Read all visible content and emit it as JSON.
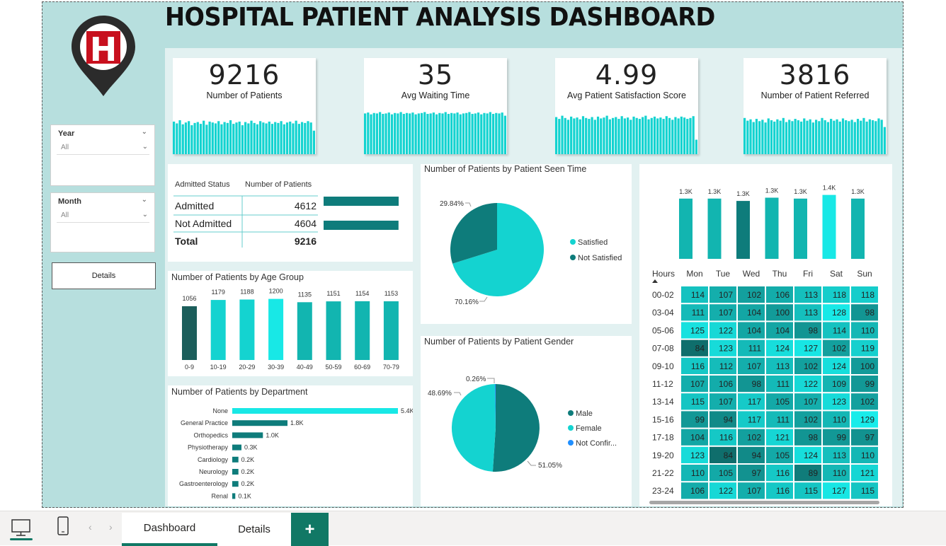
{
  "title": "HOSPITAL PATIENT ANALYSIS DASHBOARD",
  "logo_letter": "H",
  "slicers": [
    {
      "title": "Year",
      "value": "All"
    },
    {
      "title": "Month",
      "value": "All"
    }
  ],
  "details_button": "Details",
  "kpis": [
    {
      "value": "9216",
      "label": "Number of Patients",
      "spark": [
        0.72,
        0.68,
        0.75,
        0.66,
        0.7,
        0.73,
        0.64,
        0.69,
        0.71,
        0.67,
        0.74,
        0.65,
        0.72,
        0.7,
        0.68,
        0.73,
        0.66,
        0.71,
        0.69,
        0.75,
        0.67,
        0.7,
        0.72,
        0.64,
        0.71,
        0.68,
        0.74,
        0.69,
        0.66,
        0.73,
        0.7,
        0.68,
        0.72,
        0.67,
        0.71,
        0.69,
        0.73,
        0.66,
        0.7,
        0.72,
        0.68,
        0.74,
        0.67,
        0.71,
        0.69,
        0.73,
        0.7,
        0.52
      ]
    },
    {
      "value": "35",
      "label": "Avg Waiting Time",
      "spark": [
        0.9,
        0.92,
        0.88,
        0.91,
        0.9,
        0.93,
        0.89,
        0.9,
        0.92,
        0.88,
        0.91,
        0.9,
        0.93,
        0.89,
        0.91,
        0.9,
        0.92,
        0.88,
        0.9,
        0.91,
        0.93,
        0.89,
        0.9,
        0.92,
        0.88,
        0.91,
        0.9,
        0.93,
        0.89,
        0.91,
        0.9,
        0.92,
        0.88,
        0.9,
        0.91,
        0.93,
        0.89,
        0.9,
        0.92,
        0.88,
        0.91,
        0.9,
        0.93,
        0.89,
        0.91,
        0.9,
        0.92,
        0.85
      ]
    },
    {
      "value": "4.99",
      "label": "Avg Patient Satisfaction Score",
      "spark": [
        0.82,
        0.78,
        0.85,
        0.8,
        0.76,
        0.83,
        0.79,
        0.81,
        0.77,
        0.84,
        0.8,
        0.78,
        0.82,
        0.76,
        0.83,
        0.79,
        0.81,
        0.85,
        0.77,
        0.8,
        0.82,
        0.78,
        0.84,
        0.79,
        0.81,
        0.76,
        0.83,
        0.8,
        0.78,
        0.82,
        0.85,
        0.77,
        0.8,
        0.83,
        0.79,
        0.81,
        0.78,
        0.84,
        0.8,
        0.76,
        0.82,
        0.79,
        0.83,
        0.81,
        0.78,
        0.8,
        0.84,
        0.32
      ]
    },
    {
      "value": "3816",
      "label": "Number of Patient Referred",
      "spark": [
        0.8,
        0.74,
        0.77,
        0.71,
        0.78,
        0.73,
        0.76,
        0.7,
        0.79,
        0.75,
        0.72,
        0.77,
        0.74,
        0.8,
        0.71,
        0.76,
        0.73,
        0.78,
        0.75,
        0.72,
        0.79,
        0.74,
        0.77,
        0.7,
        0.76,
        0.73,
        0.8,
        0.75,
        0.71,
        0.78,
        0.74,
        0.77,
        0.72,
        0.79,
        0.75,
        0.73,
        0.76,
        0.71,
        0.78,
        0.74,
        0.8,
        0.72,
        0.77,
        0.75,
        0.73,
        0.79,
        0.76,
        0.6
      ]
    }
  ],
  "admitted_table": {
    "headers": [
      "Admitted Status",
      "Number of Patients"
    ],
    "rows": [
      {
        "status": "Admitted",
        "count": "4612",
        "value": 4612
      },
      {
        "status": "Not Admitted",
        "count": "4604",
        "value": 4604
      }
    ],
    "total_label": "Total",
    "total_value": "9216"
  },
  "colors": {
    "teal_dark": "#1c5e5b",
    "teal": "#0e7c7b",
    "teal_mid": "#12b5b0",
    "cyan": "#14d3d0",
    "cyan_bright": "#18e8e6",
    "blue": "#1f8fff",
    "accent_green": "#117865"
  },
  "charts": [
    {
      "id": "age",
      "type": "bar",
      "title": "Number of Patients by Age Group",
      "categories": [
        "0-9",
        "10-19",
        "20-29",
        "30-39",
        "40-49",
        "50-59",
        "60-69",
        "70-79"
      ],
      "values": [
        1056,
        1179,
        1188,
        1200,
        1135,
        1151,
        1154,
        1153
      ],
      "labels": [
        "1056",
        "1179",
        "1188",
        "1200",
        "1135",
        "1151",
        "1154",
        "1153"
      ],
      "ylim": [
        0,
        1250
      ]
    },
    {
      "id": "department",
      "type": "bar",
      "orientation": "horizontal",
      "title": "Number of Patients by Department",
      "categories": [
        "None",
        "General Practice",
        "Orthopedics",
        "Physiotherapy",
        "Cardiology",
        "Neurology",
        "Gastroenterology",
        "Renal"
      ],
      "values": [
        5400,
        1800,
        1000,
        300,
        200,
        200,
        200,
        100
      ],
      "labels": [
        "5.4K",
        "1.8K",
        "1.0K",
        "0.3K",
        "0.2K",
        "0.2K",
        "0.2K",
        "0.1K"
      ]
    },
    {
      "id": "seen_time",
      "type": "pie",
      "title": "Number of Patients by Patient Seen Time",
      "slices": [
        {
          "name": "Satisfied",
          "value": 70.16,
          "label": "70.16%"
        },
        {
          "name": "Not Satisfied",
          "value": 29.84,
          "label": "29.84%"
        }
      ]
    },
    {
      "id": "gender",
      "type": "pie",
      "title": "Number of Patients by Patient Gender",
      "slices": [
        {
          "name": "Male",
          "value": 51.05,
          "label": "51.05%"
        },
        {
          "name": "Female",
          "value": 48.69,
          "label": "48.69%"
        },
        {
          "name": "Not Confir...",
          "value": 0.26,
          "label": "0.26%"
        }
      ]
    },
    {
      "id": "weekday",
      "type": "bar",
      "categories": [
        "Mon",
        "Tue",
        "Wed",
        "Thu",
        "Fri",
        "Sat",
        "Sun"
      ],
      "values": [
        1300,
        1300,
        1250,
        1320,
        1300,
        1380,
        1300
      ],
      "labels": [
        "1.3K",
        "1.3K",
        "1.3K",
        "1.3K",
        "1.3K",
        "1.4K",
        "1.3K"
      ],
      "ylim": [
        0,
        1450
      ]
    },
    {
      "id": "heatmap",
      "type": "heatmap",
      "corner_label": "Hours",
      "columns": [
        "Mon",
        "Tue",
        "Wed",
        "Thu",
        "Fri",
        "Sat",
        "Sun"
      ],
      "rows": [
        "00-02",
        "03-04",
        "05-06",
        "07-08",
        "09-10",
        "11-12",
        "13-14",
        "15-16",
        "17-18",
        "19-20",
        "21-22",
        "23-24"
      ],
      "values": [
        [
          114,
          107,
          102,
          106,
          113,
          118,
          118
        ],
        [
          111,
          107,
          104,
          100,
          113,
          128,
          98
        ],
        [
          125,
          122,
          104,
          104,
          98,
          114,
          110
        ],
        [
          84,
          123,
          111,
          124,
          127,
          102,
          119
        ],
        [
          116,
          112,
          107,
          113,
          102,
          124,
          100
        ],
        [
          107,
          106,
          98,
          111,
          122,
          109,
          99
        ],
        [
          115,
          107,
          117,
          105,
          107,
          123,
          102
        ],
        [
          99,
          94,
          117,
          111,
          102,
          110,
          129
        ],
        [
          104,
          116,
          102,
          121,
          98,
          99,
          97
        ],
        [
          123,
          84,
          94,
          105,
          124,
          113,
          110
        ],
        [
          110,
          105,
          97,
          116,
          89,
          110,
          121
        ],
        [
          106,
          122,
          107,
          116,
          115,
          127,
          115
        ]
      ]
    }
  ],
  "bottom_tabs": [
    "Dashboard",
    "Details"
  ],
  "add_tab": "+"
}
